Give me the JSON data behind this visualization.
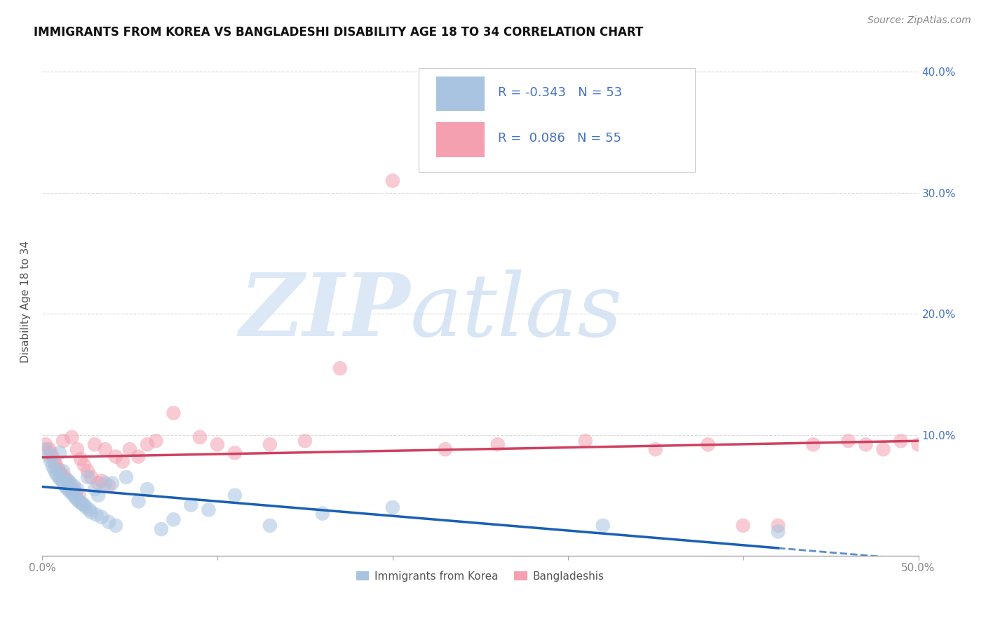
{
  "title": "IMMIGRANTS FROM KOREA VS BANGLADESHI DISABILITY AGE 18 TO 34 CORRELATION CHART",
  "source": "Source: ZipAtlas.com",
  "ylabel": "Disability Age 18 to 34",
  "xlim": [
    0.0,
    0.5
  ],
  "ylim": [
    0.0,
    0.42
  ],
  "xticks": [
    0.0,
    0.1,
    0.2,
    0.3,
    0.4,
    0.5
  ],
  "yticks": [
    0.0,
    0.1,
    0.2,
    0.3,
    0.4
  ],
  "korea_R": -0.343,
  "korea_N": 53,
  "bangla_R": 0.086,
  "bangla_N": 55,
  "korea_color": "#a8c4e0",
  "bangla_color": "#f4a0b0",
  "korea_line_color": "#1a5fb4",
  "bangla_line_color": "#d04060",
  "background_color": "#ffffff",
  "grid_color": "#d8d8d8",
  "legend_text_color": "#4472c4",
  "korea_scatter_x": [
    0.002,
    0.004,
    0.005,
    0.006,
    0.007,
    0.008,
    0.009,
    0.01,
    0.01,
    0.011,
    0.012,
    0.012,
    0.013,
    0.014,
    0.015,
    0.015,
    0.016,
    0.016,
    0.017,
    0.018,
    0.018,
    0.019,
    0.02,
    0.02,
    0.021,
    0.022,
    0.023,
    0.024,
    0.025,
    0.026,
    0.027,
    0.028,
    0.03,
    0.031,
    0.032,
    0.034,
    0.036,
    0.038,
    0.04,
    0.042,
    0.048,
    0.055,
    0.06,
    0.068,
    0.075,
    0.085,
    0.095,
    0.11,
    0.13,
    0.16,
    0.2,
    0.32,
    0.42
  ],
  "korea_scatter_y": [
    0.088,
    0.082,
    0.078,
    0.074,
    0.071,
    0.068,
    0.066,
    0.064,
    0.085,
    0.063,
    0.06,
    0.07,
    0.058,
    0.056,
    0.055,
    0.062,
    0.053,
    0.06,
    0.052,
    0.05,
    0.058,
    0.048,
    0.047,
    0.055,
    0.045,
    0.044,
    0.043,
    0.042,
    0.04,
    0.065,
    0.038,
    0.036,
    0.055,
    0.034,
    0.05,
    0.032,
    0.06,
    0.028,
    0.06,
    0.025,
    0.065,
    0.045,
    0.055,
    0.022,
    0.03,
    0.042,
    0.038,
    0.05,
    0.025,
    0.035,
    0.04,
    0.025,
    0.02
  ],
  "bangla_scatter_x": [
    0.002,
    0.004,
    0.005,
    0.006,
    0.007,
    0.008,
    0.009,
    0.01,
    0.011,
    0.012,
    0.013,
    0.014,
    0.015,
    0.016,
    0.017,
    0.018,
    0.019,
    0.02,
    0.021,
    0.022,
    0.024,
    0.026,
    0.028,
    0.03,
    0.032,
    0.034,
    0.036,
    0.038,
    0.042,
    0.046,
    0.05,
    0.055,
    0.06,
    0.065,
    0.075,
    0.09,
    0.1,
    0.11,
    0.13,
    0.15,
    0.17,
    0.2,
    0.23,
    0.26,
    0.31,
    0.35,
    0.38,
    0.4,
    0.42,
    0.44,
    0.46,
    0.47,
    0.48,
    0.49,
    0.5
  ],
  "bangla_scatter_y": [
    0.092,
    0.088,
    0.085,
    0.082,
    0.078,
    0.075,
    0.072,
    0.07,
    0.068,
    0.095,
    0.065,
    0.063,
    0.06,
    0.058,
    0.098,
    0.055,
    0.053,
    0.088,
    0.05,
    0.08,
    0.075,
    0.07,
    0.065,
    0.092,
    0.06,
    0.062,
    0.088,
    0.058,
    0.082,
    0.078,
    0.088,
    0.082,
    0.092,
    0.095,
    0.118,
    0.098,
    0.092,
    0.085,
    0.092,
    0.095,
    0.155,
    0.31,
    0.088,
    0.092,
    0.095,
    0.088,
    0.092,
    0.025,
    0.025,
    0.092,
    0.095,
    0.092,
    0.088,
    0.095,
    0.092
  ]
}
